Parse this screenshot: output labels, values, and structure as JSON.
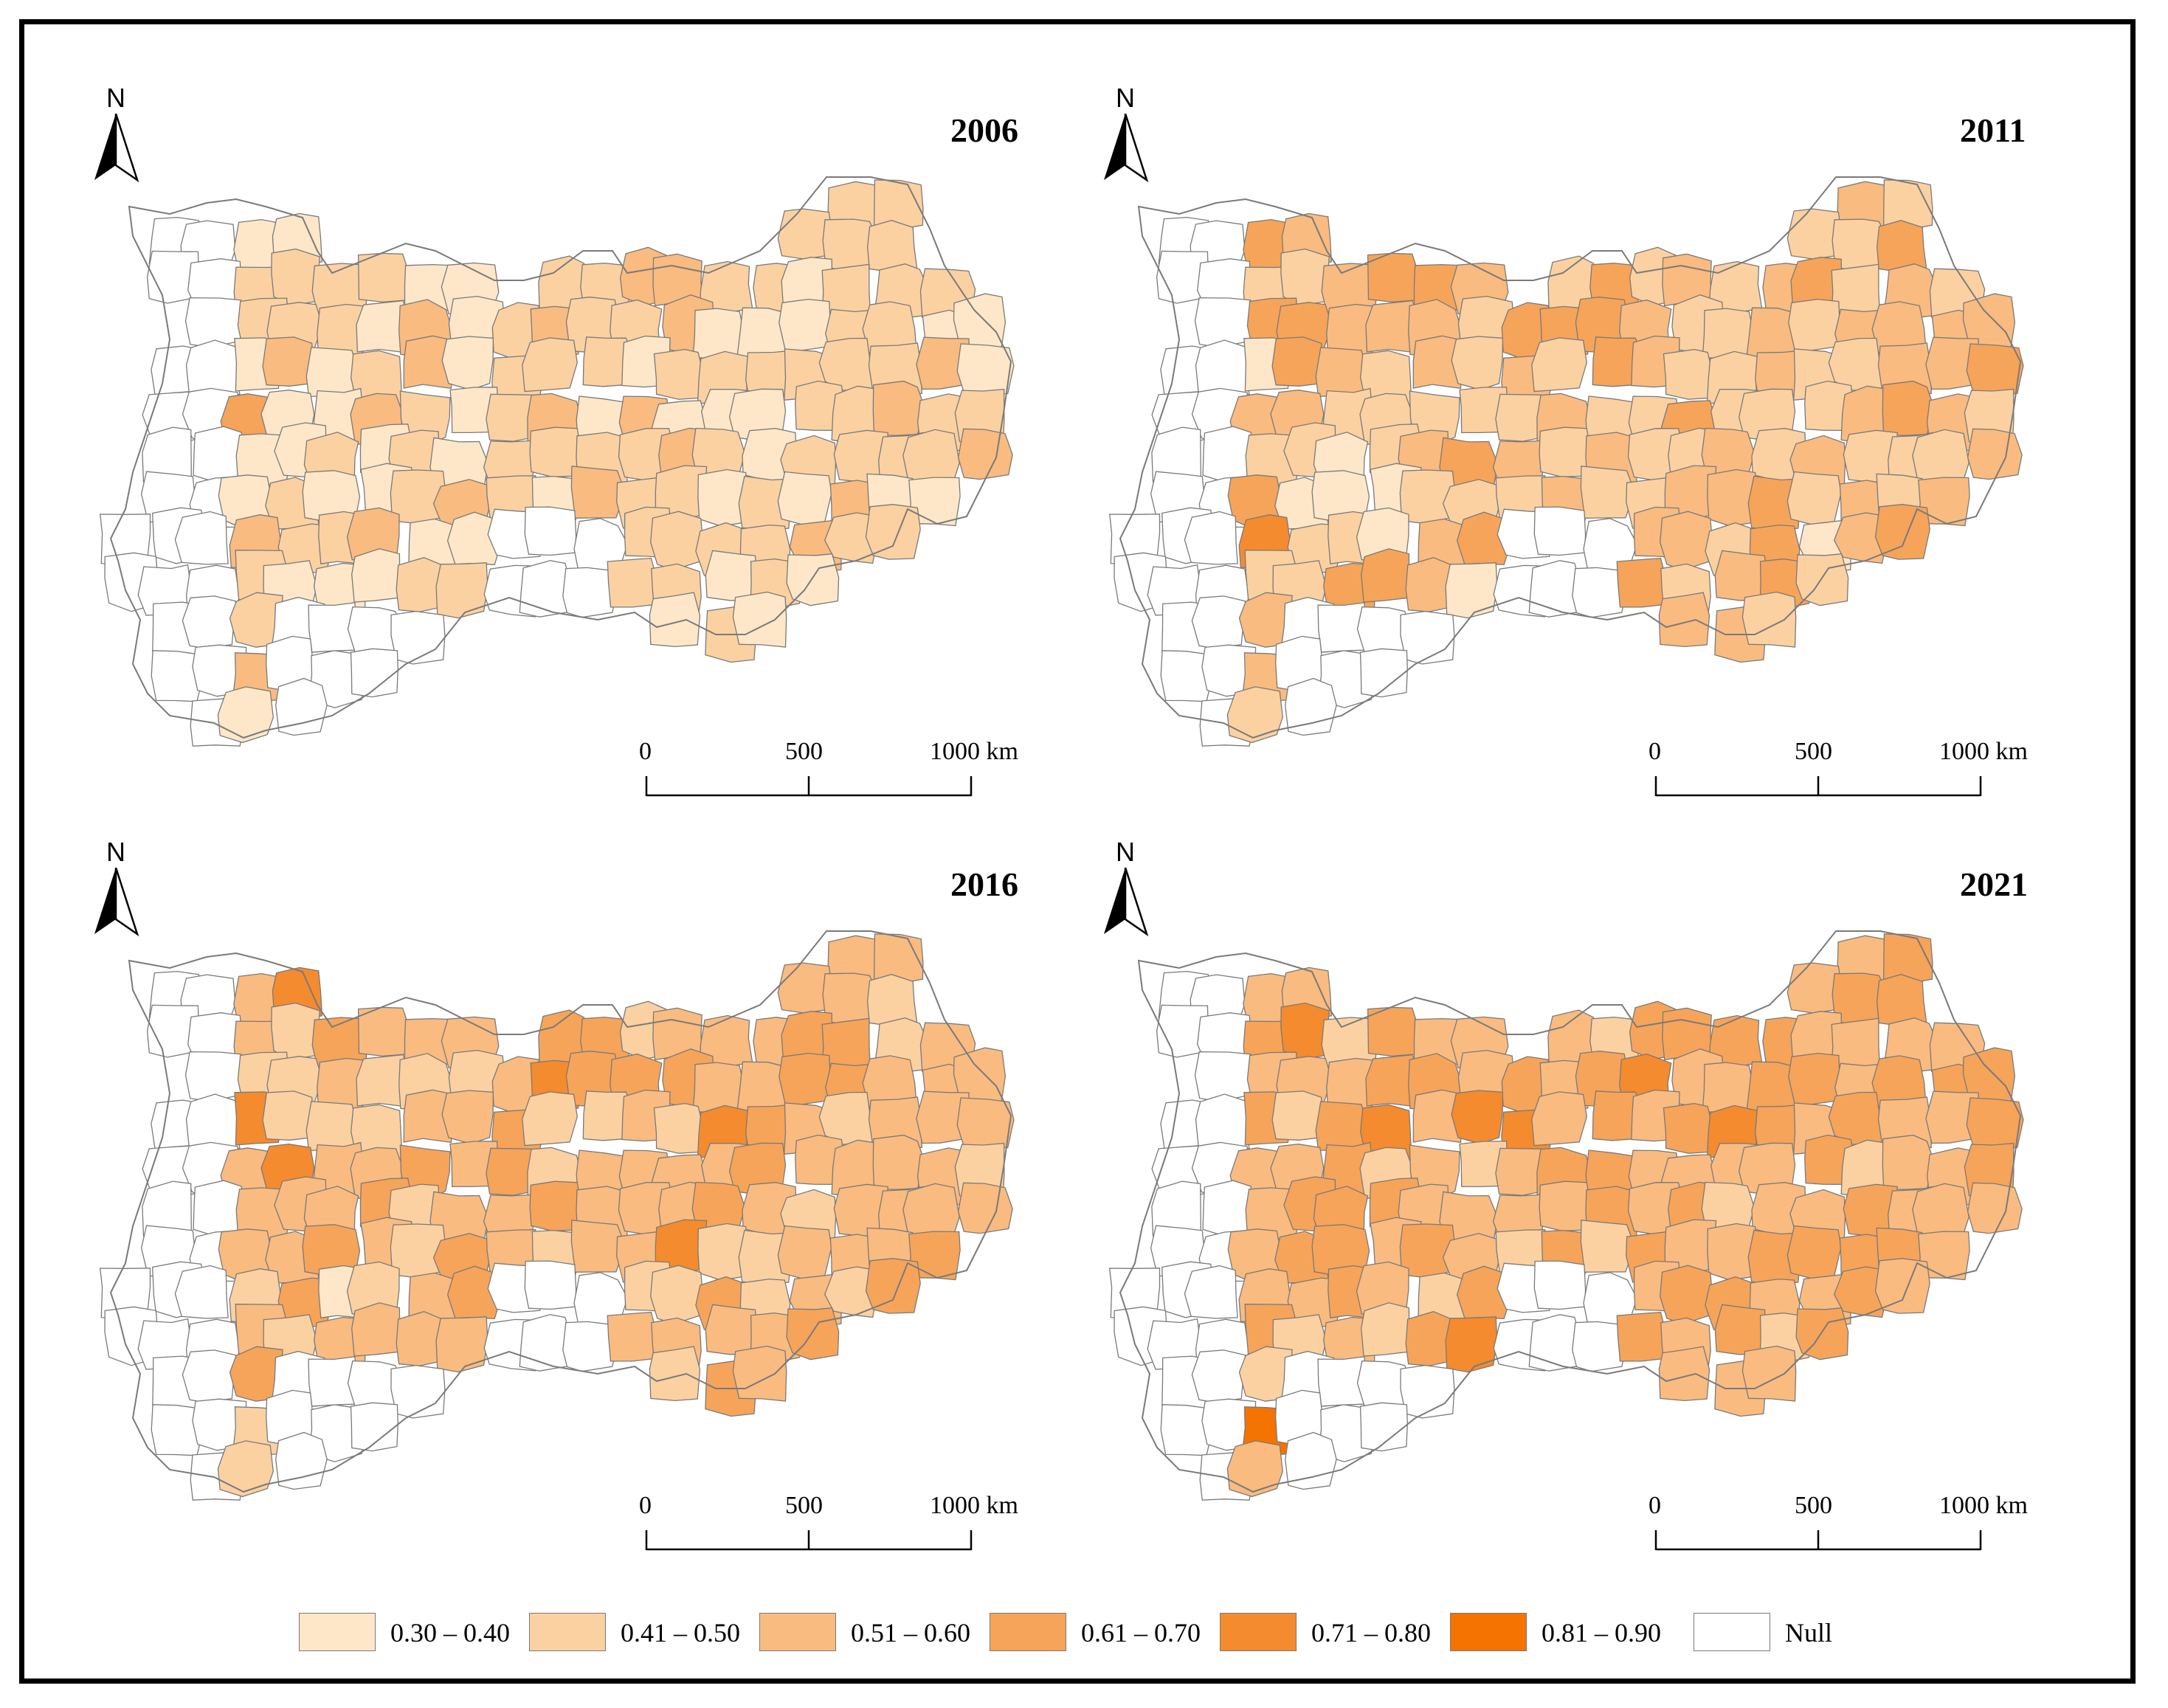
{
  "figure": {
    "panels": [
      {
        "year": "2006",
        "palette_weights": [
          0.4,
          0.4,
          0.16,
          0.04,
          0.0,
          0.0
        ]
      },
      {
        "year": "2011",
        "palette_weights": [
          0.12,
          0.42,
          0.3,
          0.14,
          0.02,
          0.0
        ]
      },
      {
        "year": "2016",
        "palette_weights": [
          0.04,
          0.34,
          0.36,
          0.2,
          0.06,
          0.0
        ]
      },
      {
        "year": "2021",
        "palette_weights": [
          0.0,
          0.18,
          0.4,
          0.3,
          0.1,
          0.02
        ]
      }
    ],
    "north_label": "N",
    "scale_bar": {
      "ticks": [
        "0",
        "500",
        "1000 km"
      ]
    },
    "legend": [
      {
        "label": "0.30 – 0.40",
        "color": "#FDE7C8"
      },
      {
        "label": "0.41 – 0.50",
        "color": "#FBD1A2"
      },
      {
        "label": "0.51 – 0.60",
        "color": "#F9BB80"
      },
      {
        "label": "0.61 – 0.70",
        "color": "#F6A45A"
      },
      {
        "label": "0.71 – 0.80",
        "color": "#F48B2E"
      },
      {
        "label": "0.81 – 0.90",
        "color": "#F57300"
      },
      {
        "label": "Null",
        "color": "#FFFFFF"
      }
    ],
    "boundary_color": "#7a7a7a"
  }
}
